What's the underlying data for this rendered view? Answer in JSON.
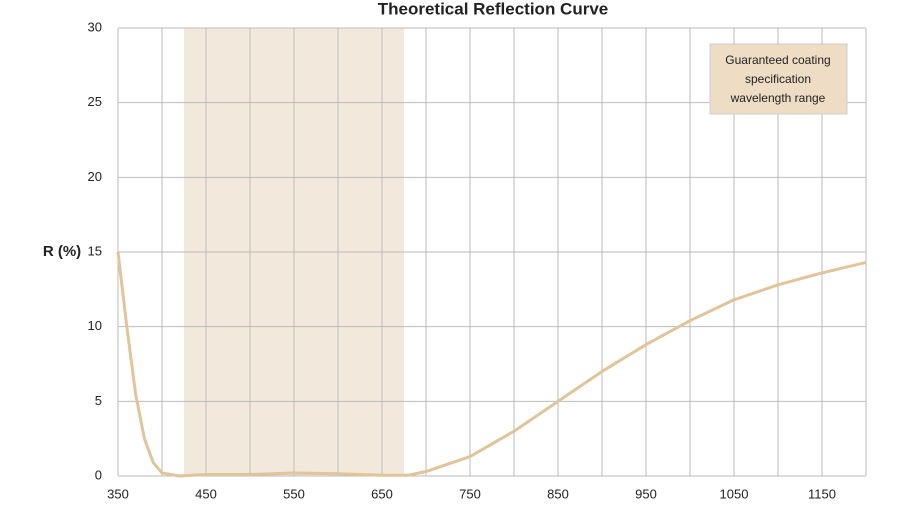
{
  "chart_data": {
    "type": "line",
    "title": "Theoretical Reflection Curve",
    "y_label": "R (%)",
    "x": [
      350,
      360,
      370,
      380,
      390,
      400,
      420,
      450,
      500,
      550,
      600,
      650,
      680,
      700,
      750,
      800,
      850,
      900,
      950,
      1000,
      1050,
      1100,
      1150,
      1200
    ],
    "series": [
      {
        "color": "#e0c49a",
        "values": [
          15,
          10,
          5.5,
          2.5,
          0.9,
          0.2,
          0,
          0.1,
          0.1,
          0.2,
          0.15,
          0.05,
          0.05,
          0.3,
          1.3,
          3,
          5,
          7,
          8.8,
          10.4,
          11.8,
          12.8,
          13.6,
          14.3
        ]
      }
    ],
    "xlim": [
      350,
      1200
    ],
    "xticks": [
      350,
      450,
      550,
      650,
      750,
      850,
      950,
      1050,
      1150
    ],
    "x_minor_grid": [
      400,
      500,
      600,
      700,
      800,
      900,
      1000,
      1100,
      1200
    ],
    "ylim": [
      0,
      30
    ],
    "yticks": [
      0,
      5,
      10,
      15,
      20,
      25,
      30
    ],
    "grid": true,
    "band": {
      "range": [
        425,
        675
      ],
      "color": "#f3e8dc"
    },
    "annotation": {
      "lines": [
        "Guaranteed coating",
        "specification",
        "wavelength range"
      ],
      "color": "#efdcc4"
    }
  }
}
